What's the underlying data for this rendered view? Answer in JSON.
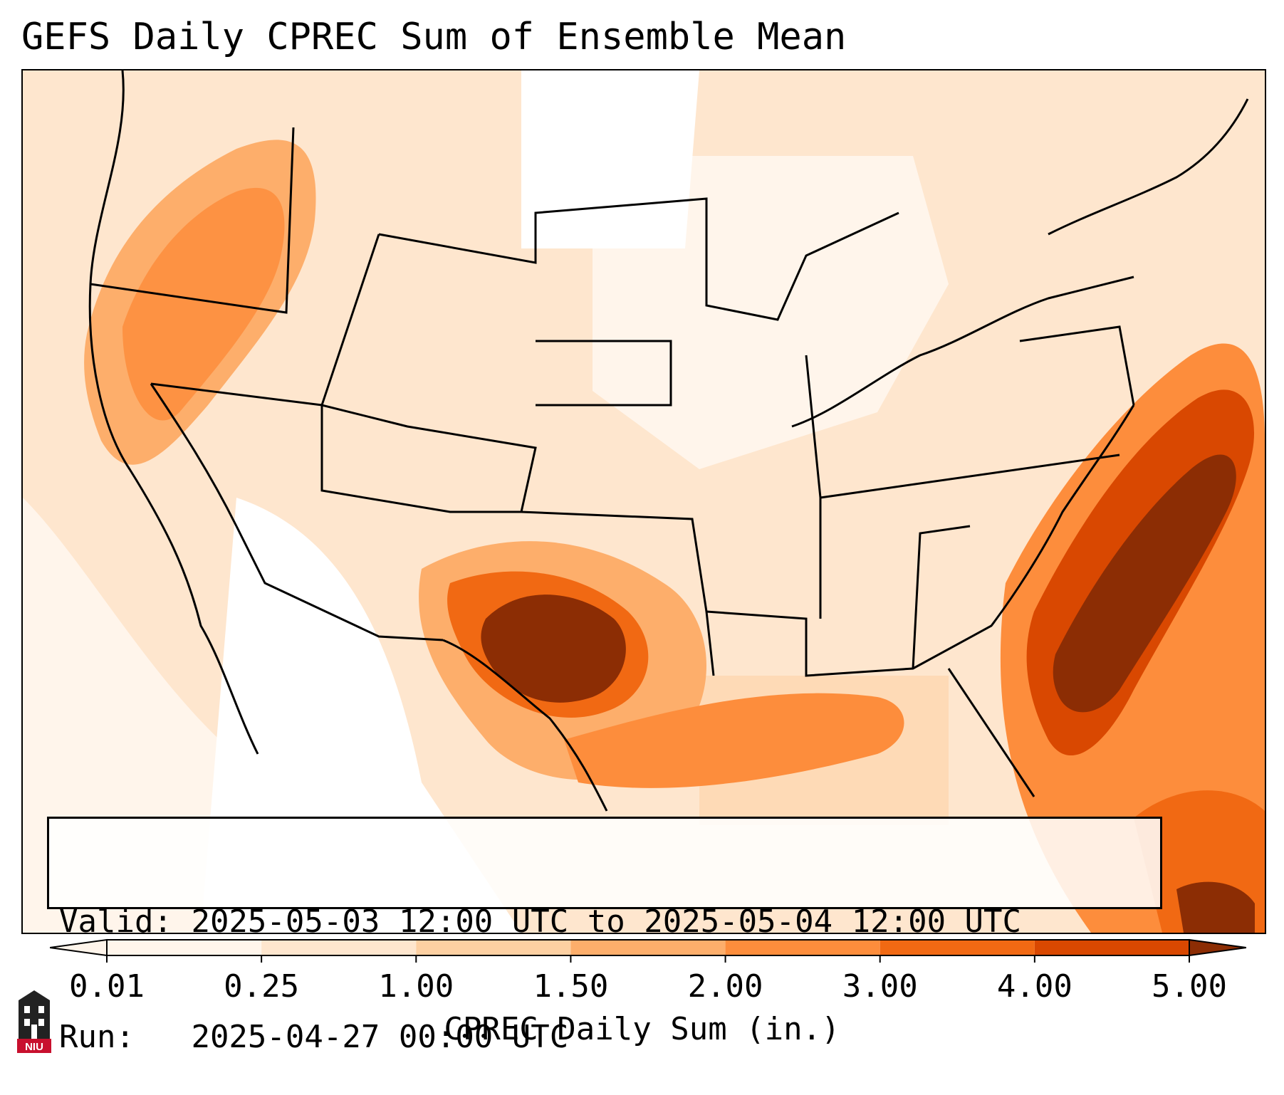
{
  "title": "GEFS Daily CPREC Sum of Ensemble Mean",
  "info": {
    "valid_label": "Valid:",
    "valid_value": "2025-05-03 12:00 UTC to 2025-05-04 12:00 UTC",
    "run_label": "Run:",
    "run_value": "2025-04-27 00:00 UTC"
  },
  "colorbar": {
    "label": "CPREC Daily Sum (in.)",
    "ticks": [
      "0.01",
      "0.25",
      "1.00",
      "1.50",
      "2.00",
      "3.00",
      "4.00",
      "5.00"
    ],
    "colors": [
      "#fff5eb",
      "#fee6ce",
      "#fdd0a2",
      "#fdae6b",
      "#fd8d3c",
      "#f16913",
      "#d94801",
      "#8c2d04"
    ],
    "extend": "both"
  },
  "legend_colors": {
    "background": "#fff5eb",
    "very_light": "#fee6ce",
    "light": "#fdd0a2",
    "medium": "#fdae6b",
    "orange": "#fd8d3c",
    "dark_orange": "#f16913",
    "red_orange": "#d94801",
    "brown": "#8c2d04"
  },
  "logo": {
    "text": "NIU",
    "color": "#c8102e"
  }
}
